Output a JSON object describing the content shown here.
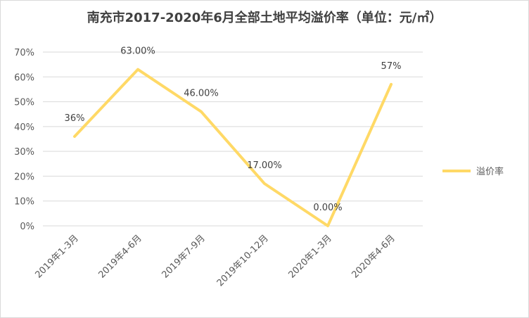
{
  "chart_data": {
    "type": "line",
    "title": "南充市2017-2020年6月全部土地平均溢价率（单位：元/㎡）",
    "categories": [
      "2019年1-3月",
      "2019年4-6月",
      "2019年7-9月",
      "2019年10-12月",
      "2020年1-3月",
      "2020年4-6月"
    ],
    "series": [
      {
        "name": "溢价率",
        "values": [
          36,
          63,
          46,
          17,
          0,
          57
        ],
        "labels": [
          "36%",
          "63.00%",
          "46.00%",
          "17.00%",
          "0.00%",
          "57%"
        ]
      }
    ],
    "y_ticks": [
      "0%",
      "10%",
      "20%",
      "30%",
      "40%",
      "50%",
      "60%",
      "70%"
    ],
    "ylim": [
      0,
      70
    ],
    "grid": true,
    "legend_position": "right",
    "colors": {
      "line": "#FFD966",
      "grid": "#d9d9d9",
      "text": "#595959"
    }
  }
}
